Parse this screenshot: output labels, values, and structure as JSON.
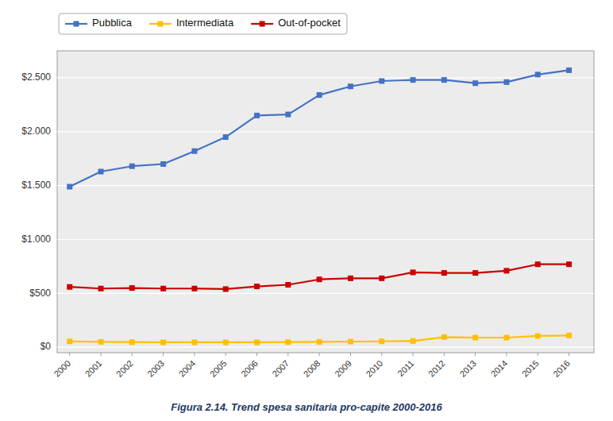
{
  "chart_data": {
    "type": "line",
    "title": "Figura 2.14. Trend spesa sanitaria pro-capite 2000-2016",
    "x": [
      2000,
      2001,
      2002,
      2003,
      2004,
      2005,
      2006,
      2007,
      2008,
      2009,
      2010,
      2011,
      2012,
      2013,
      2014,
      2015,
      2016
    ],
    "series": [
      {
        "name": "Pubblica",
        "color": "#4472C4",
        "values": [
          1490,
          1630,
          1680,
          1700,
          1820,
          1950,
          2150,
          2160,
          2340,
          2420,
          2470,
          2480,
          2480,
          2450,
          2460,
          2530,
          2570
        ]
      },
      {
        "name": "Intermediata",
        "color": "#FFC000",
        "values": [
          55,
          50,
          48,
          46,
          46,
          46,
          46,
          48,
          50,
          53,
          55,
          58,
          95,
          90,
          90,
          105,
          110
        ]
      },
      {
        "name": "Out-of-pocket",
        "color": "#CC0000",
        "values": [
          560,
          545,
          550,
          545,
          545,
          540,
          565,
          580,
          630,
          640,
          640,
          695,
          690,
          690,
          710,
          770,
          770
        ]
      }
    ],
    "xlim": [
      1999.6,
      2016.8
    ],
    "xticks": [
      2000,
      2001,
      2002,
      2003,
      2004,
      2005,
      2006,
      2007,
      2008,
      2009,
      2010,
      2011,
      2012,
      2013,
      2014,
      2015,
      2016
    ],
    "ylim": [
      -50,
      2750
    ],
    "yticks": [
      {
        "value": 0,
        "label": "$0"
      },
      {
        "value": 500,
        "label": "$500"
      },
      {
        "value": 1000,
        "label": "$1.000"
      },
      {
        "value": 1500,
        "label": "$1.500"
      },
      {
        "value": 2000,
        "label": "$2.000"
      },
      {
        "value": 2500,
        "label": "$2.500"
      }
    ],
    "grid": true,
    "legend": "top",
    "marker": "square"
  }
}
